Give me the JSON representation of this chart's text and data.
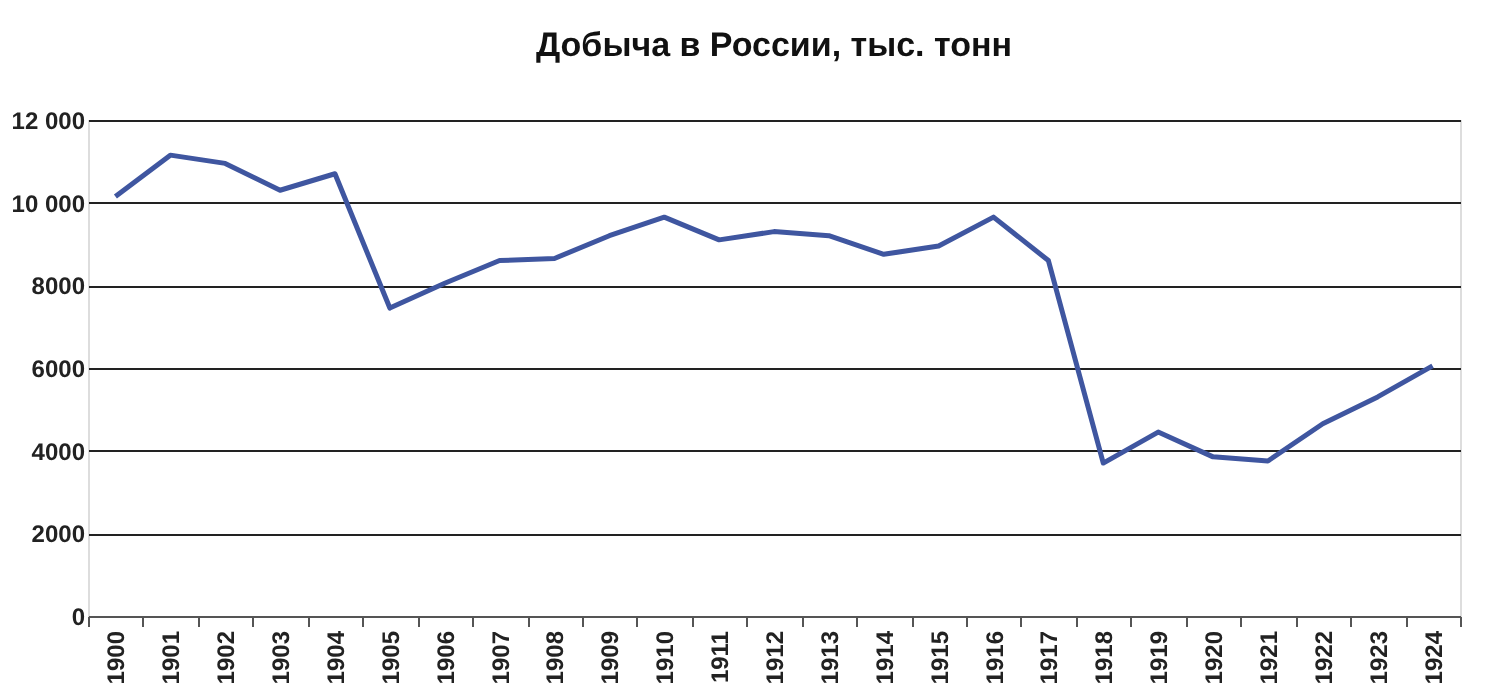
{
  "chart_data": {
    "type": "line",
    "title": "Добыча в России, тыс. тонн",
    "categories": [
      "1900",
      "1901",
      "1902",
      "1903",
      "1904",
      "1905",
      "1906",
      "1907",
      "1908",
      "1909",
      "1910",
      "1911",
      "1912",
      "1913",
      "1914",
      "1915",
      "1916",
      "1917",
      "1918",
      "1919",
      "1920",
      "1921",
      "1922",
      "1923",
      "1924"
    ],
    "series": [
      {
        "color": "#3f56a0",
        "values": [
          10150,
          11150,
          10950,
          10300,
          10700,
          7450,
          8050,
          8600,
          8650,
          9200,
          9650,
          9100,
          9300,
          9200,
          8750,
          8950,
          9650,
          8600,
          3700,
          4450,
          3850,
          3750,
          4650,
          5300,
          6050
        ]
      }
    ],
    "ylim": [
      0,
      12000
    ],
    "yticks": [
      0,
      2000,
      4000,
      6000,
      8000,
      {
        "value": 10000,
        "label": "10 000"
      },
      {
        "value": 12000,
        "label": "12 000"
      }
    ],
    "grid": "y",
    "marker": "none",
    "line_style": "solid"
  }
}
